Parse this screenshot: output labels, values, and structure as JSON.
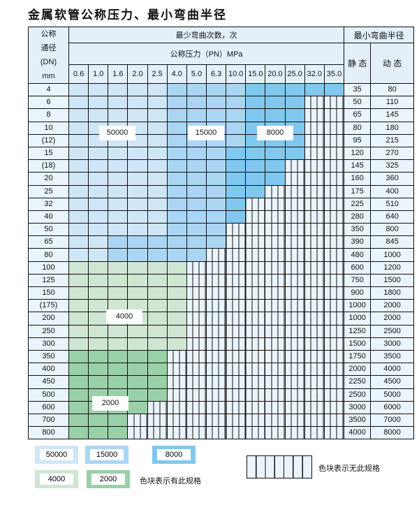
{
  "title": "金属软管公称压力、最小弯曲半径",
  "header": {
    "dn_label": [
      "公称",
      "通径",
      "(DN)",
      "mm"
    ],
    "bend_count": "最少弯曲次数，次",
    "pressure": "公称压力（PN）MPa",
    "min_radius": "最小弯曲半径",
    "static": "静 态",
    "dynamic": "动 态",
    "pressures": [
      "0.6",
      "1.0",
      "1.6",
      "2.0",
      "2.5",
      "4.0",
      "5.0",
      "6.3",
      "10.0",
      "15.0",
      "20.0",
      "25.0",
      "32.0",
      "35.0"
    ]
  },
  "categories": {
    "a": "50000",
    "b": "15000",
    "c": "8000",
    "d": "4000",
    "e": "2000",
    "x": "无此规格"
  },
  "colors": {
    "a": "#cfe6f7",
    "b": "#aad6f3",
    "c": "#80c8ef",
    "d": "#cfe6d3",
    "e": "#99d0a8"
  },
  "rows": [
    {
      "dn": "4",
      "cells": "aaaaabbbbccccc",
      "static": "35",
      "dynamic": "80"
    },
    {
      "dn": "6",
      "cells": "aaaaabbbbcccxx",
      "static": "50",
      "dynamic": "110"
    },
    {
      "dn": "8",
      "cells": "aaaaabbbbcccxx",
      "static": "65",
      "dynamic": "145"
    },
    {
      "dn": "10",
      "cells": "aaaaabbbbcccxx",
      "static": "80",
      "dynamic": "180"
    },
    {
      "dn": "(12)",
      "cells": "aaaaabbbbcccxx",
      "static": "95",
      "dynamic": "215"
    },
    {
      "dn": "15",
      "cells": "aaaaabbbccccxx",
      "static": "120",
      "dynamic": "270"
    },
    {
      "dn": "(18)",
      "cells": "aaaaabbbcccxxx",
      "static": "145",
      "dynamic": "325"
    },
    {
      "dn": "20",
      "cells": "aaaaabbbcccxxx",
      "static": "160",
      "dynamic": "360"
    },
    {
      "dn": "25",
      "cells": "aaaaabbbccxxxx",
      "static": "175",
      "dynamic": "400"
    },
    {
      "dn": "32",
      "cells": "aaaaabbbcxxxxx",
      "static": "225",
      "dynamic": "510"
    },
    {
      "dn": "40",
      "cells": "aaaaabbbcxxxxx",
      "static": "280",
      "dynamic": "640"
    },
    {
      "dn": "50",
      "cells": "aaaaabbbxxxxxx",
      "static": "350",
      "dynamic": "800"
    },
    {
      "dn": "65",
      "cells": "aabbbbbbxxxxxx",
      "static": "390",
      "dynamic": "845"
    },
    {
      "dn": "80",
      "cells": "aabbbbbxxxxxxx",
      "static": "480",
      "dynamic": "1000"
    },
    {
      "dn": "100",
      "cells": "ddddddxxxxxxxx",
      "static": "600",
      "dynamic": "1200"
    },
    {
      "dn": "125",
      "cells": "ddddddxxxxxxxx",
      "static": "750",
      "dynamic": "1500"
    },
    {
      "dn": "150",
      "cells": "ddddddxxxxxxxx",
      "static": "900",
      "dynamic": "1800"
    },
    {
      "dn": "(175)",
      "cells": "ddddddxxxxxxxx",
      "static": "1000",
      "dynamic": "2000"
    },
    {
      "dn": "200",
      "cells": "ddddddxxxxxxxx",
      "static": "1000",
      "dynamic": "2000"
    },
    {
      "dn": "250",
      "cells": "ddddddxxxxxxxx",
      "static": "1250",
      "dynamic": "2500"
    },
    {
      "dn": "300",
      "cells": "ddddddxxxxxxxx",
      "static": "1500",
      "dynamic": "3000"
    },
    {
      "dn": "350",
      "cells": "eeeeexxxxxxxxx",
      "static": "1750",
      "dynamic": "3500"
    },
    {
      "dn": "400",
      "cells": "eeeeexxxxxxxxx",
      "static": "2000",
      "dynamic": "4000"
    },
    {
      "dn": "450",
      "cells": "eeeeexxxxxxxxx",
      "static": "2250",
      "dynamic": "4500"
    },
    {
      "dn": "500",
      "cells": "eeeeexxxxxxxxx",
      "static": "2500",
      "dynamic": "5000"
    },
    {
      "dn": "600",
      "cells": "eeeexxxxxxxxxx",
      "static": "3000",
      "dynamic": "6000"
    },
    {
      "dn": "700",
      "cells": "eeexxxxxxxxxxx",
      "static": "3500",
      "dynamic": "7000"
    },
    {
      "dn": "800",
      "cells": "eeexxxxxxxxxxx",
      "static": "4000",
      "dynamic": "8000"
    }
  ],
  "region_labels": {
    "a": "50000",
    "b": "15000",
    "c": "8000",
    "d": "4000",
    "e": "2000"
  },
  "legend": {
    "items": [
      "50000",
      "15000",
      "8000",
      "4000",
      "2000"
    ],
    "has_spec": "色块表示有此规格",
    "no_spec": "色块表示无此规格"
  }
}
